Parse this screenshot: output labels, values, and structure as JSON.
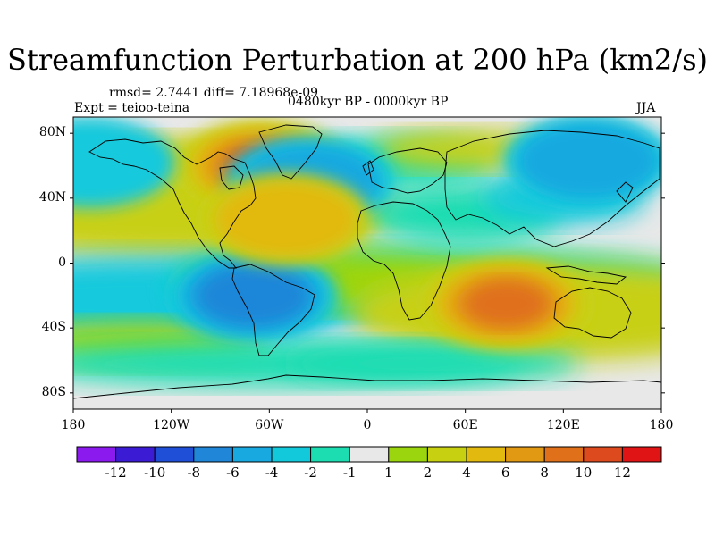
{
  "figure": {
    "title": "Streamfunction Perturbation at 200 hPa (km2/s)",
    "stats": "rmsd= 2.7441 diff= 7.18968e-09",
    "experiment": "Expt = teioo-teina",
    "period": "0480kyr BP - 0000kyr BP",
    "season": "JJA"
  },
  "map": {
    "projection": "cylindrical equidistant",
    "lon_range": [
      -180,
      180
    ],
    "lat_range": [
      -90,
      90
    ],
    "lat_ticks": [
      {
        "value": 80,
        "label": "80N"
      },
      {
        "value": 40,
        "label": "40N"
      },
      {
        "value": 0,
        "label": "0"
      },
      {
        "value": -40,
        "label": "40S"
      },
      {
        "value": -80,
        "label": "80S"
      }
    ],
    "lon_ticks": [
      {
        "value": -180,
        "label": "180"
      },
      {
        "value": -120,
        "label": "120W"
      },
      {
        "value": -60,
        "label": "60W"
      },
      {
        "value": 0,
        "label": "0"
      },
      {
        "value": 60,
        "label": "60E"
      },
      {
        "value": 120,
        "label": "120E"
      },
      {
        "value": 180,
        "label": "180"
      }
    ],
    "features": [
      {
        "name": "north-america-high",
        "lon": -65,
        "lat": 60,
        "sign": "positive",
        "peak": 11
      },
      {
        "name": "east-asia-low",
        "lon": 135,
        "lat": 63,
        "sign": "negative",
        "peak": -5
      },
      {
        "name": "south-america-low",
        "lon": -70,
        "lat": -20,
        "sign": "negative",
        "peak": -6
      },
      {
        "name": "indian-ocean-high",
        "lon": 85,
        "lat": -25,
        "sign": "positive",
        "peak": 9
      },
      {
        "name": "north-pacific-low",
        "lon": -170,
        "lat": 62,
        "sign": "negative",
        "peak": -3
      },
      {
        "name": "north-atlantic-low",
        "lon": -35,
        "lat": 50,
        "sign": "negative",
        "peak": -5
      },
      {
        "name": "subtropical-atlantic-high",
        "lon": -50,
        "lat": 27,
        "sign": "positive",
        "peak": 4
      }
    ]
  },
  "colorbar": {
    "colors": [
      "#8b1aef",
      "#3c1bd5",
      "#1f4fd6",
      "#1f86d8",
      "#17a9e0",
      "#12c9dc",
      "#1cddb2",
      "#e8e8e8",
      "#9bd50e",
      "#c8d012",
      "#e2b90f",
      "#e19813",
      "#e0701a",
      "#dc4a1e",
      "#e01414"
    ],
    "labels": [
      "-12",
      "-10",
      "-8",
      "-6",
      "-4",
      "-2",
      "-1",
      "1",
      "2",
      "4",
      "6",
      "8",
      "10",
      "12"
    ]
  }
}
